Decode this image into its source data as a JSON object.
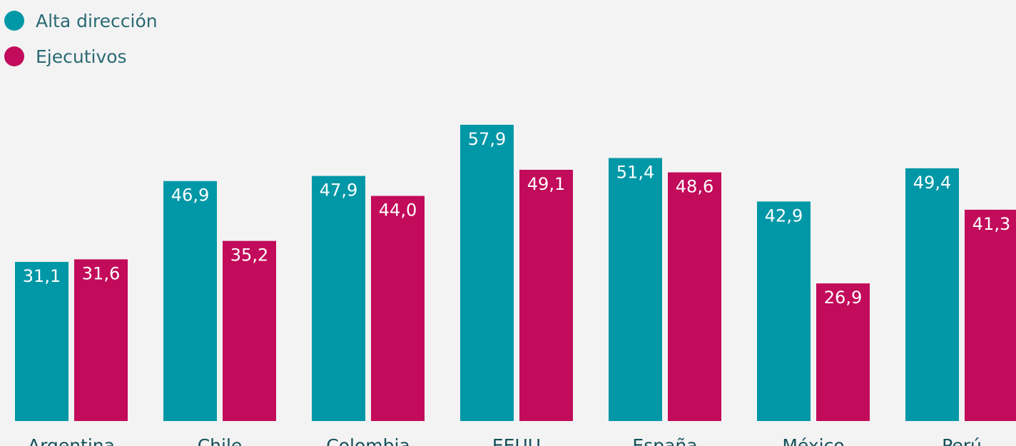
{
  "chart_data": {
    "type": "bar",
    "categories": [
      "Argentina",
      "Chile",
      "Colombia",
      "EEUU",
      "España",
      "México",
      "Perú"
    ],
    "series": [
      {
        "name": "Alta dirección",
        "color": "#0097a7",
        "values": [
          31.1,
          46.9,
          47.9,
          57.9,
          51.4,
          42.9,
          49.4
        ],
        "labels": [
          "31,1",
          "46,9",
          "47,9",
          "57,9",
          "51,4",
          "42,9",
          "49,4"
        ]
      },
      {
        "name": "Ejecutivos",
        "color": "#c20b5a",
        "values": [
          31.6,
          35.2,
          44.0,
          49.1,
          48.6,
          26.9,
          41.3
        ],
        "labels": [
          "31,6",
          "35,2",
          "44,0",
          "49,1",
          "48,6",
          "26,9",
          "41,3"
        ]
      }
    ],
    "title": "",
    "xlabel": "",
    "ylabel": "",
    "legend_position": "top-left",
    "grid": false
  }
}
